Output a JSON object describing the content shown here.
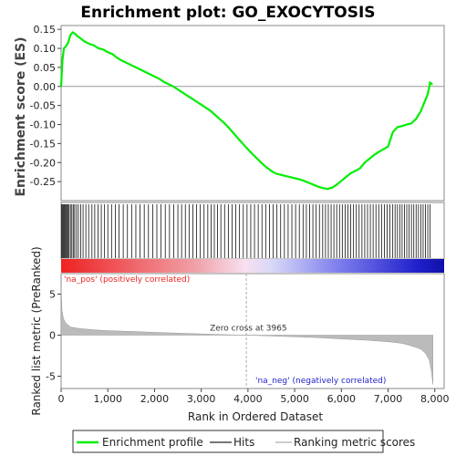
{
  "chart_data": {
    "title": "Enrichment plot: GO_EXOCYTOSIS",
    "type": "line",
    "top_panel": {
      "ylabel": "Enrichment score (ES)",
      "ylim": [
        -0.3,
        0.16
      ],
      "yticks": [
        "0.15",
        "0.10",
        "0.05",
        "0.00",
        "-0.05",
        "-0.10",
        "-0.15",
        "-0.20",
        "-0.25"
      ],
      "ytick_values": [
        0.15,
        0.1,
        0.05,
        0.0,
        -0.05,
        -0.1,
        -0.15,
        -0.2,
        -0.25
      ],
      "series": [
        {
          "name": "Enrichment profile",
          "color": "#00ee00",
          "x": [
            0,
            30,
            60,
            100,
            150,
            200,
            250,
            300,
            350,
            400,
            500,
            600,
            700,
            800,
            900,
            1000,
            1100,
            1200,
            1300,
            1400,
            1500,
            1600,
            1700,
            1800,
            1900,
            2000,
            2100,
            2200,
            2300,
            2400,
            2500,
            2600,
            2700,
            2800,
            2900,
            3000,
            3100,
            3200,
            3300,
            3400,
            3500,
            3600,
            3700,
            3800,
            3900,
            4000,
            4100,
            4200,
            4300,
            4400,
            4500,
            4600,
            4700,
            4800,
            4900,
            5000,
            5100,
            5200,
            5300,
            5400,
            5500,
            5600,
            5700,
            5800,
            5900,
            6000,
            6100,
            6200,
            6300,
            6400,
            6500,
            6600,
            6700,
            6800,
            6900,
            7000,
            7100,
            7200,
            7300,
            7400,
            7500,
            7600,
            7700,
            7800,
            7850,
            7900,
            7950
          ],
          "y": [
            0.0,
            0.07,
            0.1,
            0.105,
            0.115,
            0.135,
            0.142,
            0.138,
            0.132,
            0.128,
            0.118,
            0.112,
            0.108,
            0.1,
            0.097,
            0.09,
            0.085,
            0.075,
            0.068,
            0.062,
            0.056,
            0.05,
            0.044,
            0.038,
            0.032,
            0.026,
            0.02,
            0.012,
            0.006,
            0.0,
            -0.008,
            -0.016,
            -0.024,
            -0.032,
            -0.04,
            -0.048,
            -0.056,
            -0.064,
            -0.075,
            -0.086,
            -0.097,
            -0.11,
            -0.124,
            -0.138,
            -0.152,
            -0.165,
            -0.178,
            -0.19,
            -0.202,
            -0.213,
            -0.222,
            -0.229,
            -0.232,
            -0.235,
            -0.238,
            -0.241,
            -0.244,
            -0.248,
            -0.253,
            -0.258,
            -0.263,
            -0.267,
            -0.269,
            -0.266,
            -0.258,
            -0.248,
            -0.238,
            -0.228,
            -0.222,
            -0.215,
            -0.2,
            -0.19,
            -0.18,
            -0.172,
            -0.165,
            -0.158,
            -0.12,
            -0.107,
            -0.104,
            -0.1,
            -0.097,
            -0.085,
            -0.065,
            -0.035,
            -0.02,
            0.01,
            0.005
          ]
        }
      ]
    },
    "hits_panel": {
      "hit_positions": [
        10,
        30,
        50,
        70,
        90,
        110,
        130,
        150,
        170,
        200,
        230,
        260,
        290,
        330,
        370,
        420,
        470,
        530,
        590,
        660,
        720,
        790,
        860,
        930,
        1000,
        1080,
        1160,
        1240,
        1330,
        1420,
        1510,
        1600,
        1690,
        1780,
        1870,
        1960,
        2050,
        2140,
        2230,
        2320,
        2410,
        2500,
        2580,
        2660,
        2740,
        2820,
        2900,
        2980,
        3060,
        3140,
        3210,
        3280,
        3350,
        3420,
        3500,
        3580,
        3660,
        3740,
        3820,
        3900,
        3980,
        4060,
        4140,
        4220,
        4300,
        4380,
        4460,
        4540,
        4620,
        4700,
        4780,
        4860,
        4940,
        5020,
        5100,
        5180,
        5250,
        5320,
        5390,
        5460,
        5530,
        5600,
        5660,
        5720,
        5780,
        5840,
        5900,
        5960,
        6020,
        6080,
        6140,
        6200,
        6260,
        6320,
        6380,
        6440,
        6500,
        6560,
        6620,
        6680,
        6740,
        6800,
        6860,
        6920,
        6980,
        7040,
        7100,
        7150,
        7200,
        7250,
        7300,
        7350,
        7400,
        7450,
        7500,
        7550,
        7600,
        7650,
        7700,
        7750,
        7800,
        7850,
        7900
      ]
    },
    "bottom_panel": {
      "ylabel": "Ranked list metric (PreRanked)",
      "ylim": [
        -6.5,
        7.5
      ],
      "yticks": [
        "5",
        "0",
        "-5"
      ],
      "ytick_values": [
        5,
        0,
        -5
      ],
      "zero_cross_label": "Zero cross at 3965",
      "zero_cross": 3965,
      "pos_label": "'na_pos' (positively correlated)",
      "neg_label": "'na_neg' (negatively correlated)",
      "curve_x": [
        0,
        20,
        50,
        100,
        200,
        400,
        700,
        1000,
        1500,
        2000,
        2500,
        3000,
        3500,
        3965,
        4500,
        5000,
        5500,
        6000,
        6500,
        7000,
        7300,
        7500,
        7700,
        7800,
        7880,
        7930,
        7960
      ],
      "curve_y": [
        6.0,
        3.0,
        2.0,
        1.5,
        1.0,
        0.8,
        0.65,
        0.55,
        0.45,
        0.35,
        0.25,
        0.15,
        0.07,
        0.0,
        -0.1,
        -0.2,
        -0.3,
        -0.45,
        -0.6,
        -0.8,
        -1.0,
        -1.3,
        -1.7,
        -2.2,
        -3.0,
        -4.5,
        -6.0
      ]
    },
    "xaxis": {
      "label": "Rank in Ordered Dataset",
      "xlim": [
        0,
        8200
      ],
      "ticks": [
        "0",
        "1,000",
        "2,000",
        "3,000",
        "4,000",
        "5,000",
        "6,000",
        "7,000",
        "8,000"
      ],
      "tick_values": [
        0,
        1000,
        2000,
        3000,
        4000,
        5000,
        6000,
        7000,
        8000
      ]
    },
    "legend": {
      "entries": [
        {
          "label": "Enrichment profile",
          "color": "#00ee00"
        },
        {
          "label": "Hits",
          "color": "#777777"
        },
        {
          "label": "Ranking metric scores",
          "color": "#cccccc"
        }
      ]
    }
  }
}
